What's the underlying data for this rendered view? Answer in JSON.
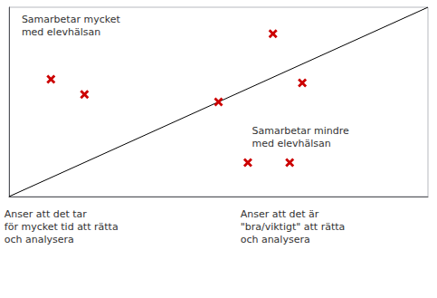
{
  "chart_data": {
    "type": "scatter",
    "series": [
      {
        "type": "line",
        "x": [
          0.0,
          1.0
        ],
        "values": [
          0.0,
          1.0
        ],
        "color": "#000000",
        "line_style": "solid"
      },
      {
        "type": "scatter",
        "x": [
          0.1,
          0.18,
          0.5,
          0.63,
          0.7,
          0.57,
          0.67
        ],
        "values": [
          0.62,
          0.54,
          0.5,
          0.86,
          0.6,
          0.18,
          0.18
        ],
        "color": "#cc0000",
        "marker": "x"
      }
    ],
    "annotations": [
      "Samarbetar mycket\nmed elevhälsan",
      "Samarbetar mindre\nmed elevhälsan",
      "Anser att det tar\nför mycket tid att rätta\noch analysera",
      "Anser att det är\n\"bra/viktigt\" att rätta\noch analysera"
    ],
    "xlim": [
      0,
      1
    ],
    "ylim": [
      0,
      1
    ],
    "xticks": [],
    "yticks": [],
    "tick_labels": false,
    "grid": false
  }
}
